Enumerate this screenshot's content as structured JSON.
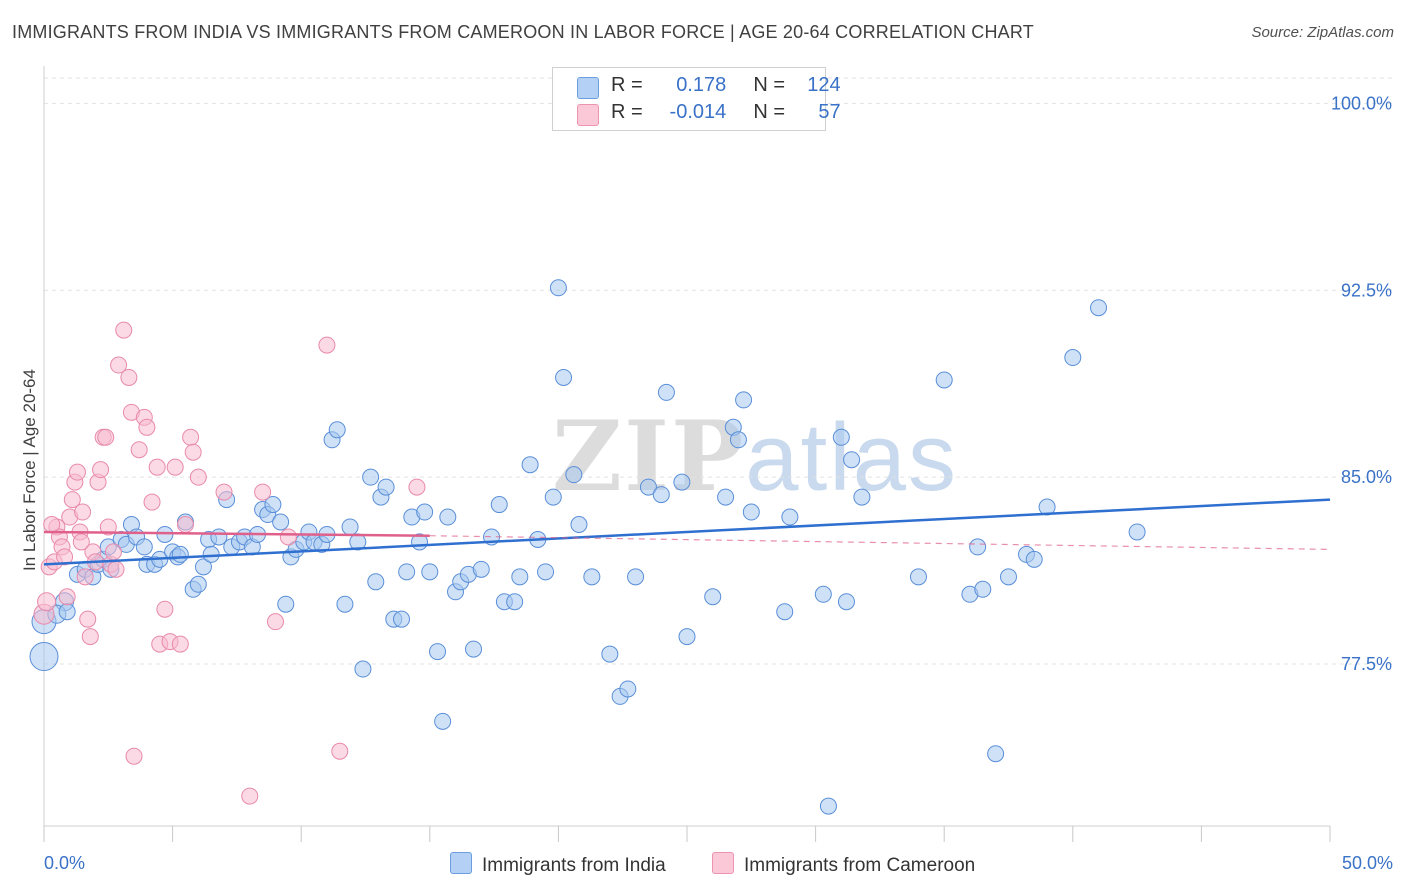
{
  "title": "IMMIGRANTS FROM INDIA VS IMMIGRANTS FROM CAMEROON IN LABOR FORCE | AGE 20-64 CORRELATION CHART",
  "source": "Source: ZipAtlas.com",
  "watermark": {
    "zip": "ZIP",
    "atlas": "atlas"
  },
  "legend": {
    "rows": [
      {
        "r_label": "R =",
        "r_value": "0.178",
        "n_label": "N =",
        "n_value": "124"
      },
      {
        "r_label": "R =",
        "r_value": "-0.014",
        "n_label": "N =",
        "n_value": "57"
      }
    ]
  },
  "bottom_legend": [
    "Immigrants from India",
    "Immigrants from Cameroon"
  ],
  "colors": {
    "india_fill": "#a8c8f0",
    "india_stroke": "#5a8fd8",
    "india_line": "#2e6fd0",
    "cameroon_fill": "#f8bcd0",
    "cameroon_stroke": "#e88aaa",
    "cameroon_line": "#e0608c",
    "axis_text": "#3a72c8",
    "grid": "#e2e2e2"
  },
  "chart_data": {
    "type": "scatter",
    "title": "IMMIGRANTS FROM INDIA VS IMMIGRANTS FROM CAMEROON IN LABOR FORCE | AGE 20-64 CORRELATION CHART",
    "xlabel": "",
    "ylabel": "In Labor Force | Age 20-64",
    "xlim": [
      0,
      50
    ],
    "ylim": [
      71.0,
      101.5
    ],
    "x_tick_labels": [
      "0.0%",
      "50.0%"
    ],
    "y_ticks": [
      77.5,
      85.0,
      92.5,
      100.0
    ],
    "y_tick_labels": [
      "77.5%",
      "85.0%",
      "92.5%",
      "100.0%"
    ],
    "grid": true,
    "legend_position": "top-center",
    "series": [
      {
        "name": "Immigrants from India",
        "trend": {
          "x": [
            0,
            50
          ],
          "y": [
            81.5,
            84.1
          ]
        },
        "points": [
          [
            0.0,
            77.8,
            14
          ],
          [
            0.0,
            79.2,
            12
          ],
          [
            0.8,
            80.0,
            9
          ],
          [
            0.5,
            79.5,
            9
          ],
          [
            0.9,
            79.6,
            8
          ],
          [
            1.3,
            81.1,
            8
          ],
          [
            1.6,
            81.3,
            8
          ],
          [
            1.9,
            81.0,
            8
          ],
          [
            2.1,
            81.5,
            8
          ],
          [
            2.3,
            81.7,
            8
          ],
          [
            2.5,
            82.2,
            8
          ],
          [
            2.6,
            81.3,
            8
          ],
          [
            3.0,
            82.5,
            8
          ],
          [
            3.2,
            82.3,
            8
          ],
          [
            3.4,
            83.1,
            8
          ],
          [
            3.6,
            82.6,
            8
          ],
          [
            3.9,
            82.2,
            8
          ],
          [
            4.0,
            81.5,
            8
          ],
          [
            4.3,
            81.5,
            8
          ],
          [
            4.5,
            81.7,
            8
          ],
          [
            4.7,
            82.7,
            8
          ],
          [
            5.0,
            82.0,
            8
          ],
          [
            5.2,
            81.8,
            8
          ],
          [
            5.3,
            81.9,
            8
          ],
          [
            5.5,
            83.2,
            8
          ],
          [
            5.8,
            80.5,
            8
          ],
          [
            6.0,
            80.7,
            8
          ],
          [
            6.2,
            81.4,
            8
          ],
          [
            6.4,
            82.5,
            8
          ],
          [
            6.5,
            81.9,
            8
          ],
          [
            6.8,
            82.6,
            8
          ],
          [
            7.1,
            84.1,
            8
          ],
          [
            7.3,
            82.2,
            8
          ],
          [
            7.6,
            82.4,
            8
          ],
          [
            7.8,
            82.6,
            8
          ],
          [
            8.1,
            82.2,
            8
          ],
          [
            8.3,
            82.7,
            8
          ],
          [
            8.5,
            83.7,
            8
          ],
          [
            8.7,
            83.5,
            8
          ],
          [
            8.9,
            83.9,
            8
          ],
          [
            9.2,
            83.2,
            8
          ],
          [
            9.4,
            79.9,
            8
          ],
          [
            9.6,
            81.8,
            8
          ],
          [
            9.8,
            82.1,
            8
          ],
          [
            10.1,
            82.4,
            8
          ],
          [
            10.3,
            82.8,
            8
          ],
          [
            10.5,
            82.4,
            8
          ],
          [
            10.8,
            82.3,
            8
          ],
          [
            11.0,
            82.7,
            8
          ],
          [
            11.2,
            86.5,
            8
          ],
          [
            11.4,
            86.9,
            8
          ],
          [
            11.7,
            79.9,
            8
          ],
          [
            11.9,
            83.0,
            8
          ],
          [
            12.2,
            82.4,
            8
          ],
          [
            12.4,
            77.3,
            8
          ],
          [
            12.7,
            85.0,
            8
          ],
          [
            12.9,
            80.8,
            8
          ],
          [
            13.1,
            84.2,
            8
          ],
          [
            13.3,
            84.6,
            8
          ],
          [
            13.6,
            79.3,
            8
          ],
          [
            13.9,
            79.3,
            8
          ],
          [
            14.1,
            81.2,
            8
          ],
          [
            14.3,
            83.4,
            8
          ],
          [
            14.6,
            82.4,
            8
          ],
          [
            14.8,
            83.6,
            8
          ],
          [
            15.0,
            81.2,
            8
          ],
          [
            15.3,
            78.0,
            8
          ],
          [
            15.5,
            75.2,
            8
          ],
          [
            15.7,
            83.4,
            8
          ],
          [
            16.0,
            80.4,
            8
          ],
          [
            16.2,
            80.8,
            8
          ],
          [
            16.5,
            81.1,
            8
          ],
          [
            16.7,
            78.1,
            8
          ],
          [
            17.0,
            81.3,
            8
          ],
          [
            17.4,
            82.6,
            8
          ],
          [
            17.7,
            83.9,
            8
          ],
          [
            17.9,
            80.0,
            8
          ],
          [
            18.3,
            80.0,
            8
          ],
          [
            18.5,
            81.0,
            8
          ],
          [
            18.9,
            85.5,
            8
          ],
          [
            19.2,
            82.5,
            8
          ],
          [
            19.5,
            81.2,
            8
          ],
          [
            19.8,
            84.2,
            8
          ],
          [
            20.0,
            92.6,
            8
          ],
          [
            20.2,
            89.0,
            8
          ],
          [
            20.6,
            85.1,
            8
          ],
          [
            20.8,
            83.1,
            8
          ],
          [
            21.3,
            81.0,
            8
          ],
          [
            22.0,
            77.9,
            8
          ],
          [
            22.4,
            76.2,
            8
          ],
          [
            22.7,
            76.5,
            8
          ],
          [
            23.0,
            81.0,
            8
          ],
          [
            23.5,
            84.6,
            8
          ],
          [
            24.0,
            84.3,
            8
          ],
          [
            24.2,
            88.4,
            8
          ],
          [
            24.8,
            84.8,
            8
          ],
          [
            25.0,
            78.6,
            8
          ],
          [
            26.0,
            80.2,
            8
          ],
          [
            26.5,
            84.2,
            8
          ],
          [
            26.8,
            87.0,
            8
          ],
          [
            27.0,
            86.5,
            8
          ],
          [
            27.2,
            88.1,
            8
          ],
          [
            27.5,
            83.6,
            8
          ],
          [
            28.8,
            79.6,
            8
          ],
          [
            29.0,
            83.4,
            8
          ],
          [
            30.3,
            80.3,
            8
          ],
          [
            30.5,
            71.8,
            8
          ],
          [
            31.0,
            86.6,
            8
          ],
          [
            31.4,
            85.7,
            8
          ],
          [
            31.8,
            84.2,
            8
          ],
          [
            31.2,
            80.0,
            8
          ],
          [
            34.0,
            81.0,
            8
          ],
          [
            35.0,
            88.9,
            8
          ],
          [
            36.0,
            80.3,
            8
          ],
          [
            36.3,
            82.2,
            8
          ],
          [
            36.5,
            80.5,
            8
          ],
          [
            37.5,
            81.0,
            8
          ],
          [
            38.2,
            81.9,
            8
          ],
          [
            38.5,
            81.7,
            8
          ],
          [
            39.0,
            83.8,
            8
          ],
          [
            40.0,
            89.8,
            8
          ],
          [
            41.0,
            91.8,
            8
          ],
          [
            37.0,
            73.9,
            8
          ],
          [
            42.5,
            82.8,
            8
          ]
        ]
      },
      {
        "name": "Immigrants from Cameroon",
        "trend": {
          "x": [
            0,
            15
          ],
          "y": [
            82.8,
            82.65
          ],
          "dashed_to": [
            50,
            82.1
          ]
        },
        "points": [
          [
            0.0,
            79.5,
            10
          ],
          [
            0.1,
            80.0,
            9
          ],
          [
            0.2,
            81.4,
            8
          ],
          [
            0.4,
            81.6,
            8
          ],
          [
            0.5,
            83.0,
            8
          ],
          [
            0.6,
            82.6,
            8
          ],
          [
            0.7,
            82.2,
            8
          ],
          [
            0.8,
            81.8,
            8
          ],
          [
            0.9,
            80.2,
            8
          ],
          [
            1.0,
            83.4,
            8
          ],
          [
            1.1,
            84.1,
            8
          ],
          [
            1.2,
            84.8,
            8
          ],
          [
            1.3,
            85.2,
            8
          ],
          [
            1.4,
            82.8,
            8
          ],
          [
            1.5,
            83.6,
            8
          ],
          [
            1.6,
            81.0,
            8
          ],
          [
            1.7,
            79.3,
            8
          ],
          [
            1.8,
            78.6,
            8
          ],
          [
            1.9,
            82.0,
            8
          ],
          [
            2.0,
            81.6,
            8
          ],
          [
            2.1,
            84.8,
            8
          ],
          [
            2.2,
            85.3,
            8
          ],
          [
            2.3,
            86.6,
            8
          ],
          [
            2.4,
            86.6,
            8
          ],
          [
            2.5,
            83.0,
            8
          ],
          [
            2.6,
            81.5,
            8
          ],
          [
            2.8,
            81.3,
            8
          ],
          [
            2.9,
            89.5,
            8
          ],
          [
            3.1,
            90.9,
            8
          ],
          [
            3.3,
            89.0,
            8
          ],
          [
            3.4,
            87.6,
            8
          ],
          [
            3.5,
            73.8,
            8
          ],
          [
            3.7,
            86.1,
            8
          ],
          [
            3.9,
            87.4,
            8
          ],
          [
            4.0,
            87.0,
            8
          ],
          [
            4.2,
            84.0,
            8
          ],
          [
            4.4,
            85.4,
            8
          ],
          [
            4.5,
            78.3,
            8
          ],
          [
            4.7,
            79.7,
            8
          ],
          [
            4.9,
            78.4,
            8
          ],
          [
            5.1,
            85.4,
            8
          ],
          [
            5.3,
            78.3,
            8
          ],
          [
            5.5,
            83.1,
            8
          ],
          [
            5.7,
            86.6,
            8
          ],
          [
            5.8,
            86.0,
            8
          ],
          [
            6.0,
            85.0,
            8
          ],
          [
            7.0,
            84.4,
            8
          ],
          [
            8.0,
            72.2,
            8
          ],
          [
            8.5,
            84.4,
            8
          ],
          [
            9.0,
            79.2,
            8
          ],
          [
            9.5,
            82.6,
            8
          ],
          [
            11.0,
            90.3,
            8
          ],
          [
            11.5,
            74.0,
            8
          ],
          [
            14.5,
            84.6,
            8
          ],
          [
            0.3,
            83.1,
            8
          ],
          [
            2.7,
            82.0,
            8
          ],
          [
            1.45,
            82.4,
            8
          ]
        ]
      }
    ]
  }
}
